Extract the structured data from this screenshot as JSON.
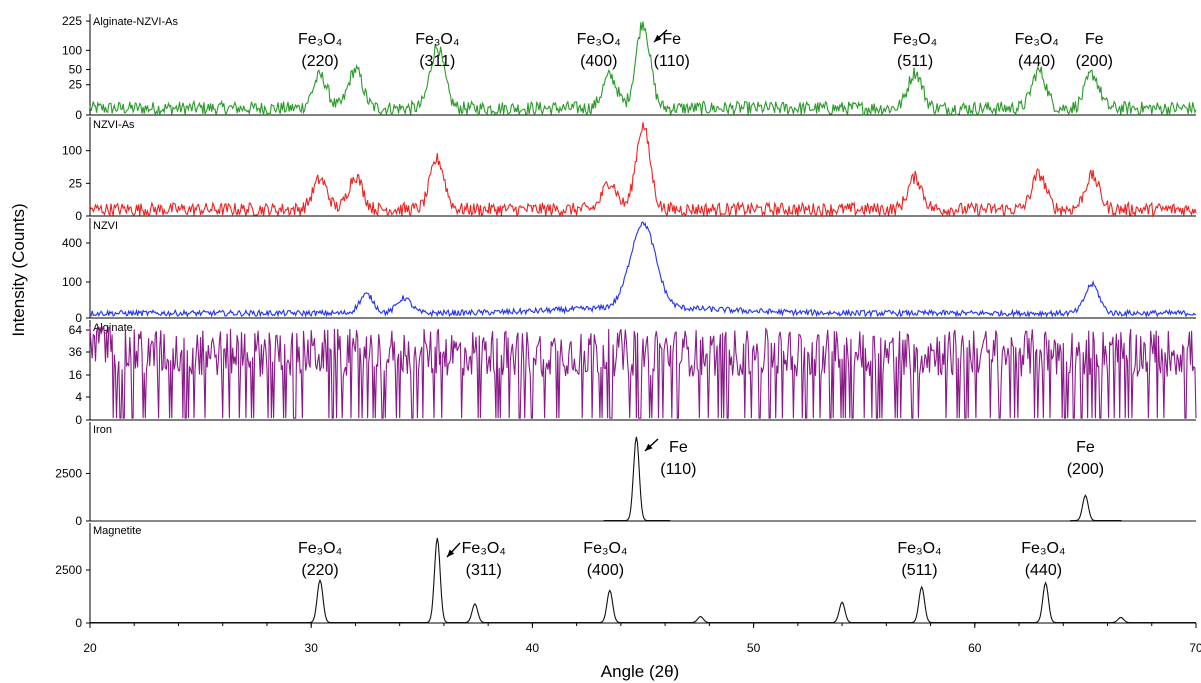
{
  "chart_data": {
    "type": "line",
    "xlabel": "Angle (2θ)",
    "ylabel": "Intensity (Counts)",
    "x_ticks": [
      "20",
      "30",
      "40",
      "50",
      "60",
      "70"
    ],
    "xlim": [
      20,
      70
    ],
    "panels": [
      {
        "name": "Alginate-NZVI-As",
        "color": "#2a9a2a",
        "y_ticks": [
          "225",
          "100",
          "50",
          "25",
          "0"
        ],
        "peaks": [
          {
            "x": 30.4,
            "h": 0.38
          },
          {
            "x": 32.0,
            "h": 0.45
          },
          {
            "x": 35.7,
            "h": 0.72
          },
          {
            "x": 43.5,
            "h": 0.38
          },
          {
            "x": 45.0,
            "h": 1.0
          },
          {
            "x": 57.3,
            "h": 0.42
          },
          {
            "x": 62.9,
            "h": 0.44
          },
          {
            "x": 65.3,
            "h": 0.4
          }
        ],
        "annotations": [
          {
            "text": "Fe₃O₄",
            "sub": "(220)",
            "x": 30.4
          },
          {
            "text": "Fe₃O₄",
            "sub": "(311)",
            "x": 35.7
          },
          {
            "text": "Fe₃O₄",
            "sub": "(400)",
            "x": 43.0
          },
          {
            "text": "Fe",
            "sub": "(110)",
            "x": 46.3
          },
          {
            "text": "Fe₃O₄",
            "sub": "(511)",
            "x": 57.3
          },
          {
            "text": "Fe₃O₄",
            "sub": "(440)",
            "x": 62.8
          },
          {
            "text": "Fe",
            "sub": "(200)",
            "x": 65.4
          }
        ]
      },
      {
        "name": "NZVI-As",
        "color": "#ee2222",
        "y_ticks": [
          "100",
          "25",
          "0"
        ],
        "peaks": [
          {
            "x": 30.4,
            "h": 0.36
          },
          {
            "x": 32.0,
            "h": 0.4
          },
          {
            "x": 35.7,
            "h": 0.6
          },
          {
            "x": 43.5,
            "h": 0.33
          },
          {
            "x": 45.0,
            "h": 1.0
          },
          {
            "x": 57.3,
            "h": 0.38
          },
          {
            "x": 62.9,
            "h": 0.42
          },
          {
            "x": 65.3,
            "h": 0.4
          }
        ],
        "annotations": []
      },
      {
        "name": "NZVI",
        "color": "#2233ee",
        "y_ticks": [
          "400",
          "100",
          "0"
        ],
        "peaks": [
          {
            "x": 32.5,
            "h": 0.22
          },
          {
            "x": 34.2,
            "h": 0.18
          },
          {
            "x": 45.0,
            "h": 1.0
          },
          {
            "x": 65.3,
            "h": 0.34
          }
        ],
        "annotations": []
      },
      {
        "name": "Alginate",
        "color": "#8a1a8a",
        "y_ticks": [
          "64",
          "36",
          "16",
          "4",
          "0"
        ],
        "peaks": [],
        "annotations": []
      },
      {
        "name": "Iron",
        "color": "#111111",
        "y_ticks": [
          "2500",
          "0"
        ],
        "peaks": [
          {
            "x": 44.7,
            "h": 1.0
          },
          {
            "x": 65.0,
            "h": 0.3
          }
        ],
        "annotations": [
          {
            "text": "Fe",
            "sub": "(110)",
            "x": 46.6
          },
          {
            "text": "Fe",
            "sub": "(200)",
            "x": 65.0
          }
        ]
      },
      {
        "name": "Magnetite",
        "color": "#111111",
        "y_ticks": [
          "2500",
          "0"
        ],
        "peaks": [
          {
            "x": 30.4,
            "h": 0.5
          },
          {
            "x": 35.7,
            "h": 1.0
          },
          {
            "x": 37.4,
            "h": 0.22
          },
          {
            "x": 43.5,
            "h": 0.38
          },
          {
            "x": 47.6,
            "h": 0.07
          },
          {
            "x": 54.0,
            "h": 0.24
          },
          {
            "x": 57.6,
            "h": 0.42
          },
          {
            "x": 63.2,
            "h": 0.47
          },
          {
            "x": 66.6,
            "h": 0.06
          }
        ],
        "annotations": [
          {
            "text": "Fe₃O₄",
            "sub": "(220)",
            "x": 30.4
          },
          {
            "text": "Fe₃O₄",
            "sub": "(311)",
            "x": 37.8
          },
          {
            "text": "Fe₃O₄",
            "sub": "(400)",
            "x": 43.3
          },
          {
            "text": "Fe₃O₄",
            "sub": "(511)",
            "x": 57.5
          },
          {
            "text": "Fe₃O₄",
            "sub": "(440)",
            "x": 63.1
          }
        ]
      }
    ]
  }
}
